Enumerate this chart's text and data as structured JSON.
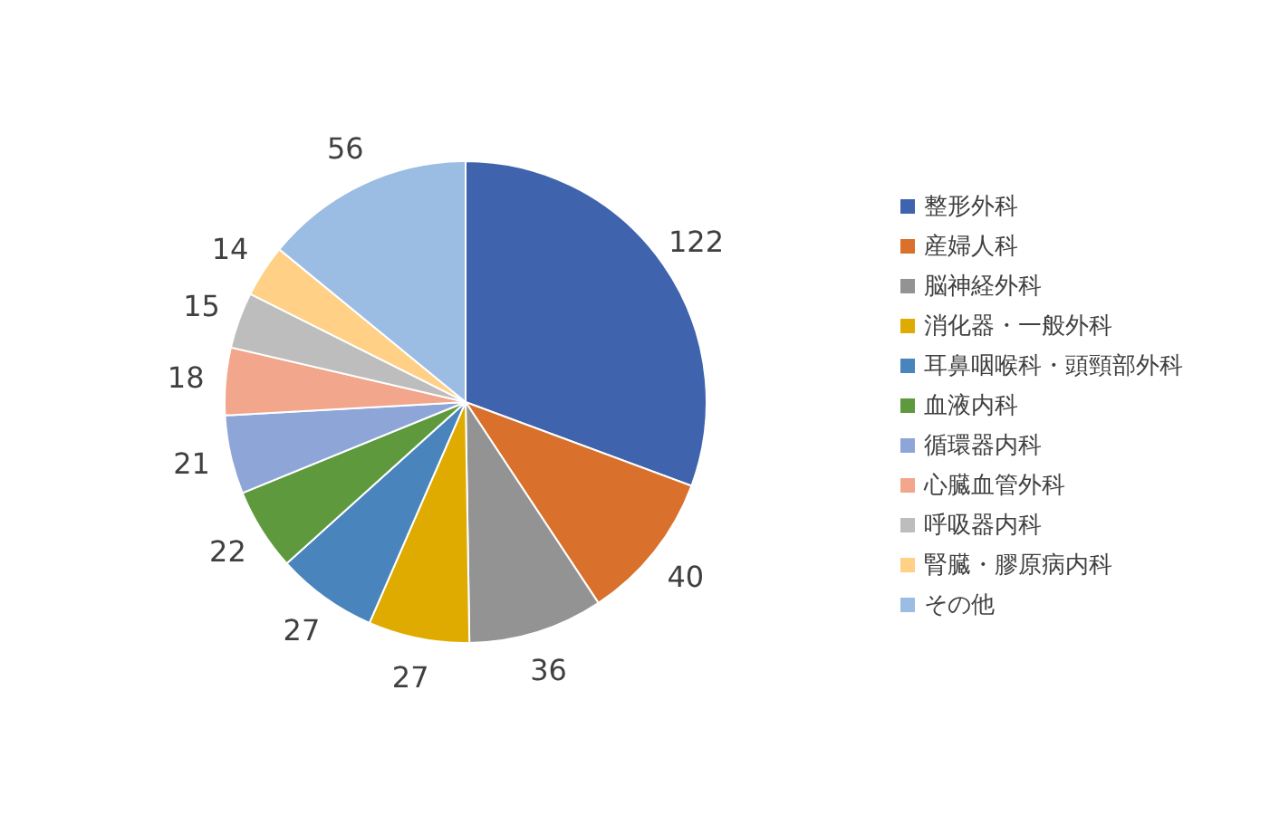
{
  "chart_data": {
    "type": "pie",
    "categories": [
      "整形外科",
      "産婦人科",
      "脳神経外科",
      "消化器・一般外科",
      "耳鼻咽喉科・頭頸部外科",
      "血液内科",
      "循環器内科",
      "心臓血管外科",
      "呼吸器内科",
      "腎臓・膠原病内科",
      "その他"
    ],
    "values": [
      122,
      40,
      36,
      27,
      27,
      22,
      21,
      18,
      15,
      14,
      56
    ],
    "colors": [
      "#3f64ad",
      "#d9702b",
      "#939393",
      "#e0ab00",
      "#4a84bd",
      "#5e9a3d",
      "#8ea5d8",
      "#f2a68b",
      "#bdbdbd",
      "#ffd085",
      "#9cbde3"
    ],
    "data_labels": true,
    "legend": "right"
  }
}
